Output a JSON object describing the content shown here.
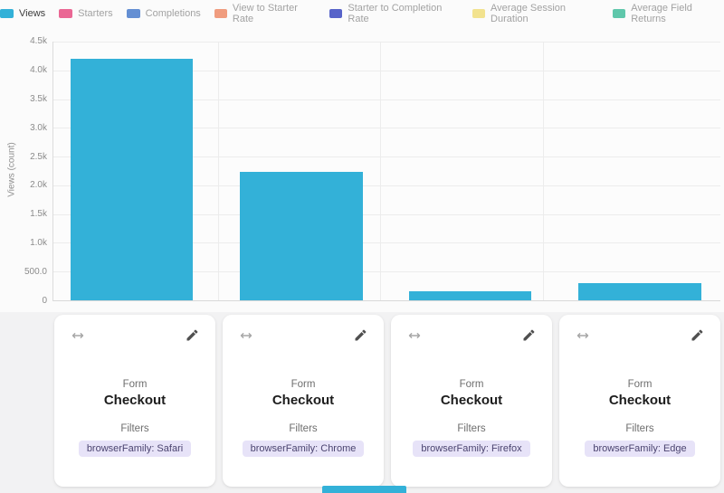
{
  "legend": {
    "items": [
      {
        "label": "Views",
        "color": "#33b1d8",
        "active": true
      },
      {
        "label": "Starters",
        "color": "#ea6794",
        "active": false
      },
      {
        "label": "Completions",
        "color": "#648fd3",
        "active": false
      },
      {
        "label": "View to Starter Rate",
        "color": "#f09c7e",
        "active": false
      },
      {
        "label": "Starter to Completion Rate",
        "color": "#5763c9",
        "active": false
      },
      {
        "label": "Average Session Duration",
        "color": "#f2e28e",
        "active": false
      },
      {
        "label": "Average Field Returns",
        "color": "#5fc7ab",
        "active": false
      }
    ]
  },
  "chart_data": {
    "type": "bar",
    "title": "",
    "xlabel": "",
    "ylabel": "Views (count)",
    "ylim": [
      0,
      4500
    ],
    "yticks": [
      "4.5k",
      "4.0k",
      "3.5k",
      "3.0k",
      "2.5k",
      "2.0k",
      "1.5k",
      "1.0k",
      "500.0",
      "0"
    ],
    "grid": true,
    "legend_position": "top",
    "categories": [
      "browserFamily: Safari",
      "browserFamily: Chrome",
      "browserFamily: Firefox",
      "browserFamily: Edge"
    ],
    "series": [
      {
        "name": "Views",
        "color": "#33b1d8",
        "values": [
          4200,
          2230,
          160,
          300
        ]
      }
    ]
  },
  "cards": [
    {
      "form_label": "Form",
      "form_name": "Checkout",
      "filters_label": "Filters",
      "filter_badge": "browserFamily: Safari"
    },
    {
      "form_label": "Form",
      "form_name": "Checkout",
      "filters_label": "Filters",
      "filter_badge": "browserFamily: Chrome"
    },
    {
      "form_label": "Form",
      "form_name": "Checkout",
      "filters_label": "Filters",
      "filter_badge": "browserFamily: Firefox"
    },
    {
      "form_label": "Form",
      "form_name": "Checkout",
      "filters_label": "Filters",
      "filter_badge": "browserFamily: Edge"
    }
  ]
}
